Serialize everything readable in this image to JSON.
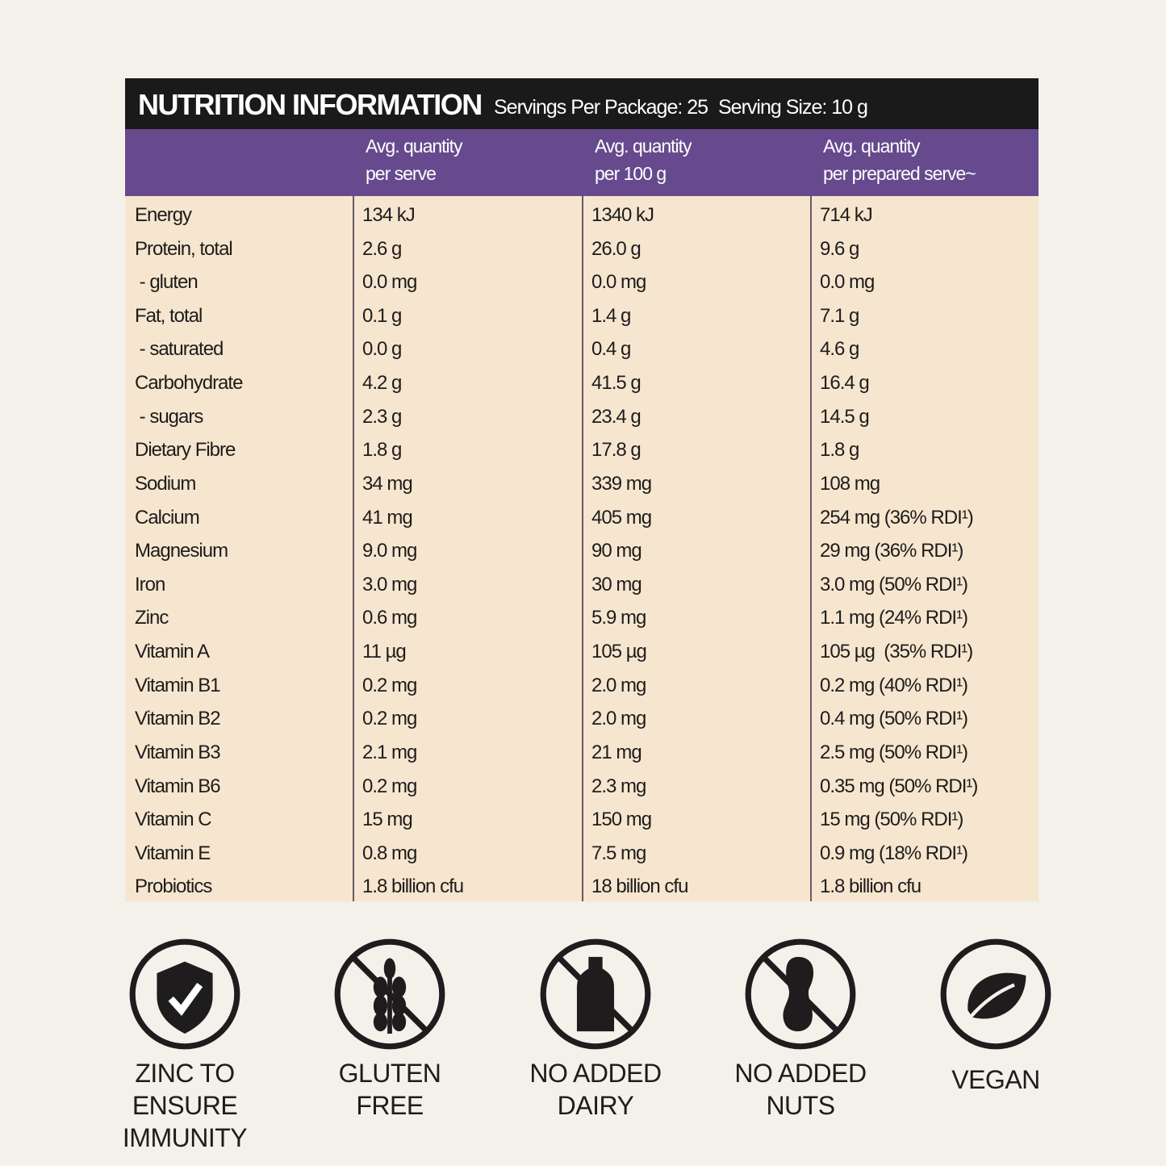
{
  "header": {
    "title": "NUTRITION INFORMATION",
    "servings": "Servings Per Package: 25",
    "serving_size": "Serving Size: 10 g"
  },
  "table": {
    "columns": [
      [
        "Avg. quantity",
        "per serve"
      ],
      [
        "Avg. quantity",
        "per 100 g"
      ],
      [
        "Avg. quantity",
        "per prepared serve~"
      ]
    ],
    "rows": [
      [
        "Energy",
        "134 kJ",
        "1340 kJ",
        "714 kJ"
      ],
      [
        "Protein, total",
        "2.6 g",
        "26.0 g",
        "9.6 g"
      ],
      [
        " - gluten",
        "0.0 mg",
        "0.0 mg",
        "0.0 mg"
      ],
      [
        "Fat, total",
        "0.1 g",
        "1.4 g",
        "7.1 g"
      ],
      [
        " - saturated",
        "0.0 g",
        "0.4 g",
        "4.6 g"
      ],
      [
        "Carbohydrate",
        "4.2 g",
        "41.5 g",
        "16.4 g"
      ],
      [
        " - sugars",
        "2.3 g",
        "23.4 g",
        "14.5 g"
      ],
      [
        "Dietary Fibre",
        "1.8 g",
        "17.8 g",
        "1.8 g"
      ],
      [
        "Sodium",
        "34 mg",
        "339 mg",
        "108 mg"
      ],
      [
        "Calcium",
        "41 mg",
        "405 mg",
        "254 mg (36% RDI¹)"
      ],
      [
        "Magnesium",
        "9.0 mg",
        "90 mg",
        "29 mg (36% RDI¹)"
      ],
      [
        "Iron",
        "3.0 mg",
        "30 mg",
        "3.0 mg (50% RDI¹)"
      ],
      [
        "Zinc",
        "0.6 mg",
        "5.9 mg",
        "1.1 mg (24% RDI¹)"
      ],
      [
        "Vitamin A",
        "11 µg",
        "105 µg",
        "105 µg  (35% RDI¹)"
      ],
      [
        "Vitamin B1",
        "0.2 mg",
        "2.0 mg",
        "0.2 mg (40% RDI¹)"
      ],
      [
        "Vitamin B2",
        "0.2 mg",
        "2.0 mg",
        "0.4 mg (50% RDI¹)"
      ],
      [
        "Vitamin B3",
        "2.1 mg",
        "21 mg",
        "2.5 mg (50% RDI¹)"
      ],
      [
        "Vitamin B6",
        "0.2 mg",
        "2.3 mg",
        "0.35 mg (50% RDI¹)"
      ],
      [
        "Vitamin C",
        "15 mg",
        "150 mg",
        "15 mg (50% RDI¹)"
      ],
      [
        "Vitamin E",
        "0.8 mg",
        "7.5 mg",
        "0.9 mg (18% RDI¹)"
      ],
      [
        "Probiotics",
        "1.8 billion cfu",
        "18 billion cfu",
        "1.8 billion cfu"
      ]
    ]
  },
  "badges": [
    [
      "ZINC TO ENSURE",
      "IMMUNITY"
    ],
    [
      "GLUTEN",
      "FREE"
    ],
    [
      "NO ADDED",
      "DAIRY"
    ],
    [
      "NO ADDED",
      "NUTS"
    ],
    [
      "VEGAN"
    ]
  ]
}
